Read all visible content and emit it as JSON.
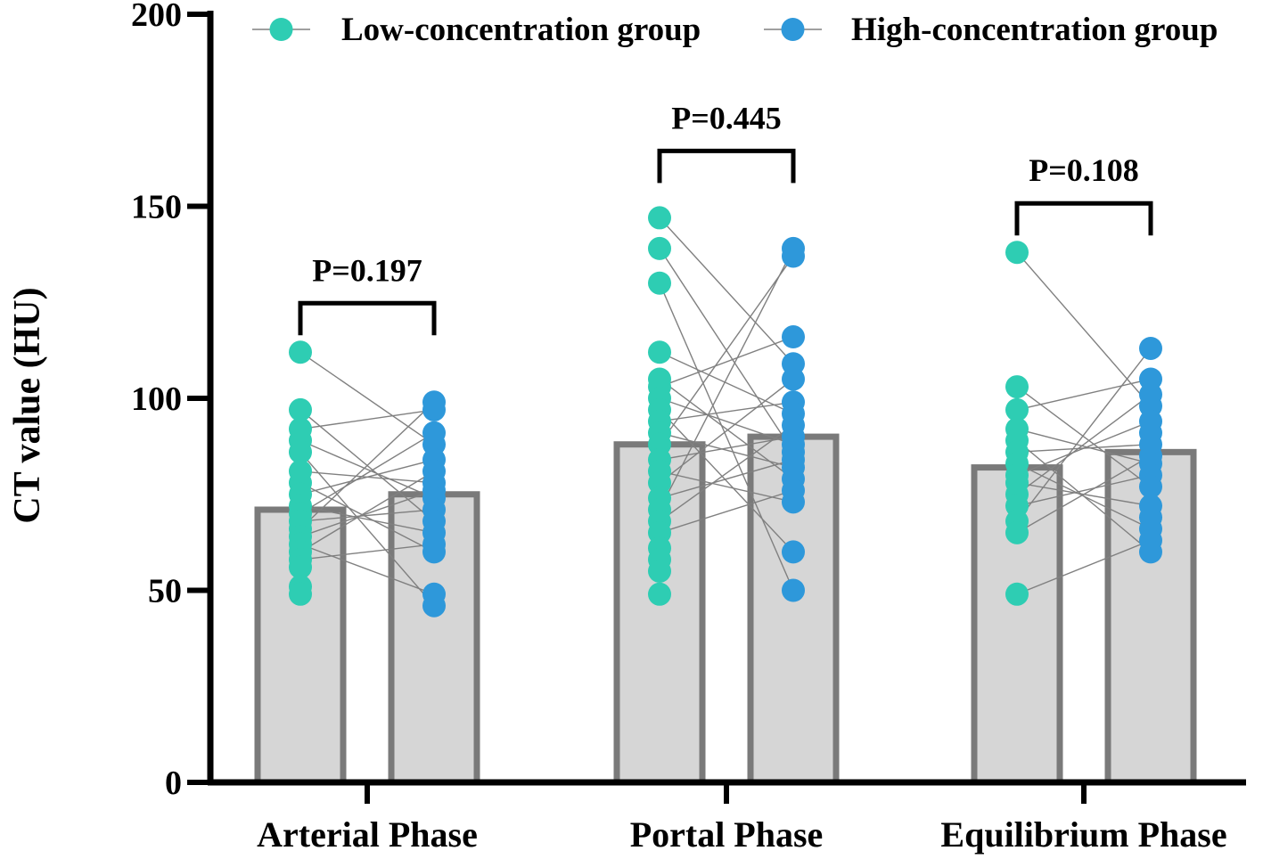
{
  "chart_data": {
    "type": "bar",
    "title": "",
    "xlabel": "",
    "ylabel": "CT value (HU)",
    "ylim": [
      0,
      200
    ],
    "yticks": [
      "0",
      "50",
      "100",
      "150",
      "200"
    ],
    "categories": [
      "Arterial Phase",
      "Portal Phase",
      "Equilibrium Phase"
    ],
    "legend_position": "top",
    "series": [
      {
        "name": "Low-concentration group",
        "color": "#2ecdb3",
        "means": [
          71,
          88,
          82
        ],
        "points": [
          [
            112,
            97,
            92,
            89,
            86,
            81,
            78,
            75,
            72,
            70,
            68,
            66,
            64,
            62,
            60,
            58,
            56,
            51,
            49
          ],
          [
            147,
            139,
            130,
            112,
            105,
            103,
            100,
            97,
            94,
            91,
            88,
            84,
            81,
            78,
            74,
            71,
            68,
            65,
            61,
            58,
            55,
            49
          ],
          [
            138,
            103,
            97,
            92,
            89,
            86,
            83,
            80,
            78,
            75,
            72,
            68,
            65,
            49
          ]
        ]
      },
      {
        "name": "High-concentration group",
        "color": "#2e98da",
        "means": [
          75,
          90,
          86
        ],
        "points": [
          [
            99,
            97,
            91,
            88,
            84,
            81,
            78,
            76,
            74,
            71,
            68,
            65,
            62,
            60,
            49,
            46
          ],
          [
            139,
            137,
            116,
            109,
            105,
            99,
            96,
            93,
            90,
            88,
            86,
            84,
            82,
            79,
            76,
            73,
            60,
            50
          ],
          [
            113,
            105,
            101,
            98,
            94,
            91,
            88,
            85,
            83,
            80,
            77,
            72,
            69,
            66,
            63,
            60
          ]
        ]
      }
    ],
    "p_values": [
      "P=0.197",
      "P=0.445",
      "P=0.108"
    ]
  }
}
